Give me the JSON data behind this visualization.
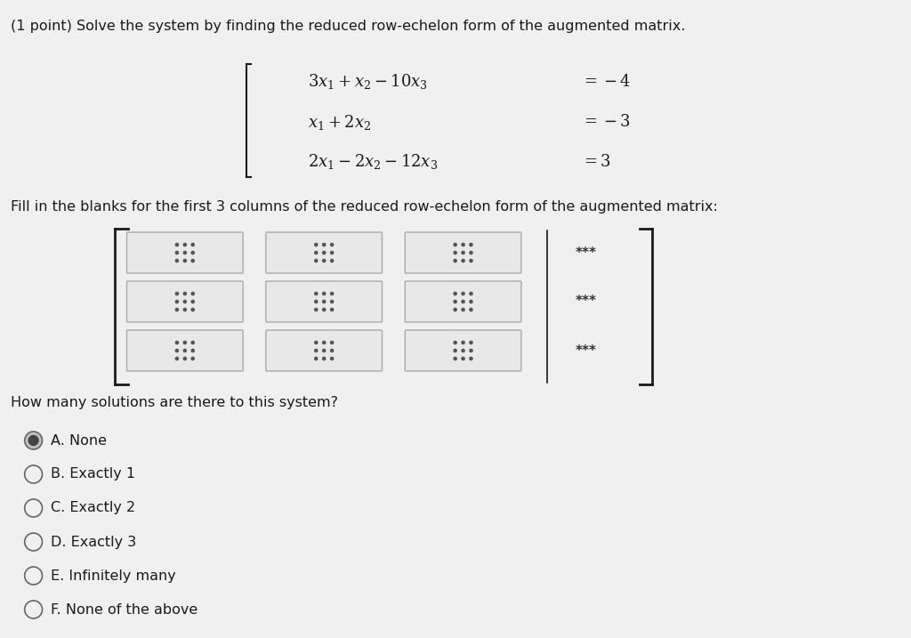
{
  "bg_color": "#f0f0f0",
  "title_text": "(1 point) Solve the system by finding the reduced row-echelon form of the augmented matrix.",
  "eq1": "3x₁ + x₂ − 10x₃     = −4",
  "eq2": "x₁ + 2x₂           = −3",
  "eq3": "2x₁ − 2x₂ − 12x₃  = 3",
  "fill_text": "Fill in the blanks for the first 3 columns of the reduced row-echelon form of the augmented matrix:",
  "how_many_text": "How many solutions are there to this system?",
  "options": [
    "A. None",
    "B. Exactly 1",
    "C. Exactly 2",
    "D. Exactly 3",
    "E. Infinitely many",
    "F. None of the above"
  ],
  "selected_option": 0,
  "text_color": "#1a1a1a",
  "box_bg": "#e8e8e8",
  "box_border": "#aaaaaa",
  "dot_color": "#555555",
  "stars_color": "#333333"
}
